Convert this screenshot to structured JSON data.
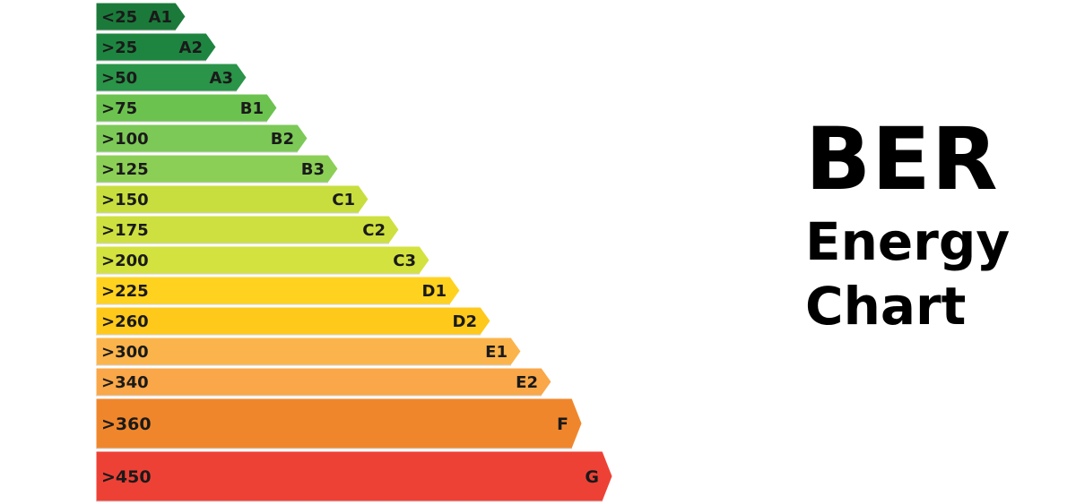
{
  "title": {
    "line1": "BER",
    "line2": "Energy",
    "line3": "Chart"
  },
  "bands": [
    {
      "range": "<25",
      "grade": "A1",
      "color": "#1b7a3a"
    },
    {
      "range": ">25",
      "grade": "A2",
      "color": "#1e8540"
    },
    {
      "range": ">50",
      "grade": "A3",
      "color": "#2a9448"
    },
    {
      "range": ">75",
      "grade": "B1",
      "color": "#6cc24f"
    },
    {
      "range": ">100",
      "grade": "B2",
      "color": "#7cc957"
    },
    {
      "range": ">125",
      "grade": "B3",
      "color": "#8ccf57"
    },
    {
      "range": ">150",
      "grade": "C1",
      "color": "#c8de3f"
    },
    {
      "range": ">175",
      "grade": "C2",
      "color": "#cee03f"
    },
    {
      "range": ">200",
      "grade": "C3",
      "color": "#d3e23e"
    },
    {
      "range": ">225",
      "grade": "D1",
      "color": "#ffd21f"
    },
    {
      "range": ">260",
      "grade": "D2",
      "color": "#ffc91c"
    },
    {
      "range": ">300",
      "grade": "E1",
      "color": "#fbb44c"
    },
    {
      "range": ">340",
      "grade": "E2",
      "color": "#f9a748"
    },
    {
      "range": ">360",
      "grade": "F",
      "color": "#f0862c"
    },
    {
      "range": ">450",
      "grade": "G",
      "color": "#ee4136"
    }
  ]
}
